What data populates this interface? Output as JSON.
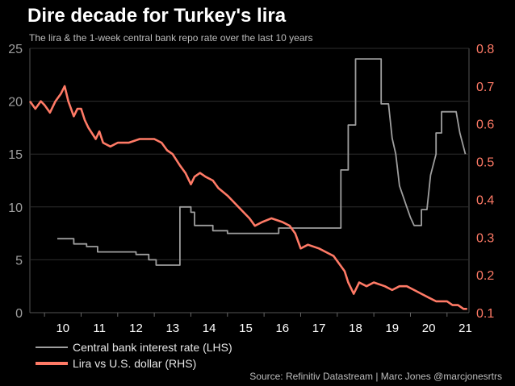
{
  "chart_data": {
    "type": "line",
    "title": "Dire decade for Turkey's lira",
    "subtitle": "The lira & the 1-week central bank repo rate over the last 10 years",
    "source": "Source: Refinitiv Datastream | Marc Jones @marcjonesrtrs",
    "x_ticks": [
      "10",
      "11",
      "12",
      "13",
      "14",
      "15",
      "16",
      "17",
      "18",
      "19",
      "20",
      "21"
    ],
    "left_axis": {
      "label": "Central bank interest rate (LHS)",
      "ylim": [
        0,
        25
      ],
      "ticks": [
        0,
        5,
        10,
        15,
        20,
        25
      ],
      "color": "#9e9e9e"
    },
    "right_axis": {
      "label": "Lira vs U.S. dollar (RHS)",
      "ylim": [
        0.1,
        0.8
      ],
      "ticks": [
        "0.1",
        "0.2",
        "0.3",
        "0.4",
        "0.5",
        "0.6",
        "0.7",
        "0.8"
      ],
      "color": "#ff7a66"
    },
    "xlim": [
      2009.6,
      2021.6
    ],
    "series": [
      {
        "name": "Central bank interest rate (LHS)",
        "axis": "left",
        "color": "#9e9e9e",
        "points": [
          [
            2010.35,
            7.0
          ],
          [
            2010.8,
            7.0
          ],
          [
            2010.8,
            6.5
          ],
          [
            2011.15,
            6.5
          ],
          [
            2011.15,
            6.25
          ],
          [
            2011.45,
            6.25
          ],
          [
            2011.45,
            5.75
          ],
          [
            2012.5,
            5.75
          ],
          [
            2012.5,
            5.5
          ],
          [
            2012.85,
            5.5
          ],
          [
            2012.85,
            5.0
          ],
          [
            2013.05,
            5.0
          ],
          [
            2013.05,
            4.5
          ],
          [
            2013.7,
            4.5
          ],
          [
            2013.7,
            10.0
          ],
          [
            2014.0,
            10.0
          ],
          [
            2014.0,
            9.5
          ],
          [
            2014.1,
            9.5
          ],
          [
            2014.1,
            8.25
          ],
          [
            2014.6,
            8.25
          ],
          [
            2014.6,
            7.75
          ],
          [
            2015.0,
            7.75
          ],
          [
            2015.0,
            7.5
          ],
          [
            2016.4,
            7.5
          ],
          [
            2016.4,
            8.0
          ],
          [
            2017.0,
            8.0
          ],
          [
            2017.0,
            8.0
          ],
          [
            2018.1,
            8.0
          ],
          [
            2018.1,
            13.5
          ],
          [
            2018.3,
            13.5
          ],
          [
            2018.3,
            17.75
          ],
          [
            2018.5,
            17.75
          ],
          [
            2018.5,
            24.0
          ],
          [
            2019.2,
            24.0
          ],
          [
            2019.2,
            19.75
          ],
          [
            2019.4,
            19.75
          ],
          [
            2019.5,
            16.5
          ],
          [
            2019.6,
            15.0
          ],
          [
            2019.7,
            12.0
          ],
          [
            2019.8,
            11.0
          ],
          [
            2019.9,
            10.0
          ],
          [
            2020.0,
            9.0
          ],
          [
            2020.1,
            8.25
          ],
          [
            2020.3,
            8.25
          ],
          [
            2020.3,
            9.75
          ],
          [
            2020.45,
            9.75
          ],
          [
            2020.55,
            13.0
          ],
          [
            2020.7,
            15.0
          ],
          [
            2020.7,
            17.0
          ],
          [
            2020.85,
            17.0
          ],
          [
            2020.85,
            19.0
          ],
          [
            2021.25,
            19.0
          ],
          [
            2021.35,
            17.0
          ],
          [
            2021.5,
            15.0
          ]
        ]
      },
      {
        "name": "Lira vs U.S. dollar (RHS)",
        "axis": "right",
        "color": "#ff7a66",
        "points": [
          [
            2009.6,
            0.66
          ],
          [
            2009.75,
            0.64
          ],
          [
            2009.9,
            0.66
          ],
          [
            2010.0,
            0.65
          ],
          [
            2010.15,
            0.63
          ],
          [
            2010.3,
            0.66
          ],
          [
            2010.45,
            0.68
          ],
          [
            2010.55,
            0.7
          ],
          [
            2010.65,
            0.66
          ],
          [
            2010.8,
            0.62
          ],
          [
            2010.9,
            0.64
          ],
          [
            2011.0,
            0.64
          ],
          [
            2011.1,
            0.61
          ],
          [
            2011.2,
            0.59
          ],
          [
            2011.4,
            0.56
          ],
          [
            2011.5,
            0.58
          ],
          [
            2011.6,
            0.55
          ],
          [
            2011.8,
            0.54
          ],
          [
            2012.0,
            0.55
          ],
          [
            2012.3,
            0.55
          ],
          [
            2012.6,
            0.56
          ],
          [
            2013.0,
            0.56
          ],
          [
            2013.2,
            0.55
          ],
          [
            2013.35,
            0.53
          ],
          [
            2013.5,
            0.52
          ],
          [
            2013.7,
            0.49
          ],
          [
            2013.85,
            0.47
          ],
          [
            2014.0,
            0.44
          ],
          [
            2014.1,
            0.46
          ],
          [
            2014.25,
            0.47
          ],
          [
            2014.4,
            0.46
          ],
          [
            2014.6,
            0.45
          ],
          [
            2014.75,
            0.43
          ],
          [
            2015.0,
            0.41
          ],
          [
            2015.2,
            0.39
          ],
          [
            2015.4,
            0.37
          ],
          [
            2015.6,
            0.35
          ],
          [
            2015.75,
            0.33
          ],
          [
            2015.95,
            0.34
          ],
          [
            2016.2,
            0.35
          ],
          [
            2016.5,
            0.34
          ],
          [
            2016.7,
            0.33
          ],
          [
            2016.85,
            0.31
          ],
          [
            2017.0,
            0.27
          ],
          [
            2017.2,
            0.28
          ],
          [
            2017.5,
            0.27
          ],
          [
            2017.7,
            0.26
          ],
          [
            2017.9,
            0.25
          ],
          [
            2018.05,
            0.23
          ],
          [
            2018.2,
            0.21
          ],
          [
            2018.3,
            0.18
          ],
          [
            2018.45,
            0.15
          ],
          [
            2018.6,
            0.18
          ],
          [
            2018.8,
            0.17
          ],
          [
            2019.0,
            0.18
          ],
          [
            2019.3,
            0.17
          ],
          [
            2019.5,
            0.16
          ],
          [
            2019.7,
            0.17
          ],
          [
            2019.9,
            0.17
          ],
          [
            2020.1,
            0.16
          ],
          [
            2020.3,
            0.15
          ],
          [
            2020.5,
            0.14
          ],
          [
            2020.7,
            0.13
          ],
          [
            2020.85,
            0.13
          ],
          [
            2021.0,
            0.13
          ],
          [
            2021.15,
            0.12
          ],
          [
            2021.3,
            0.12
          ],
          [
            2021.45,
            0.11
          ],
          [
            2021.55,
            0.11
          ]
        ]
      }
    ]
  }
}
